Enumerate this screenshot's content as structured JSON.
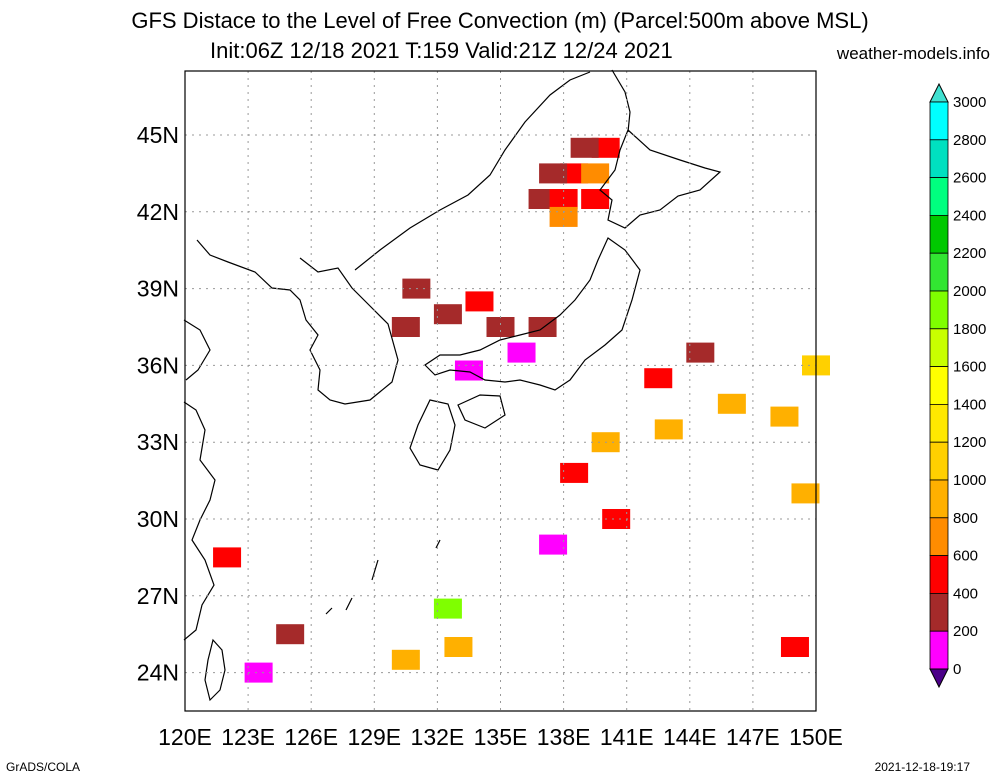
{
  "title_line1": "GFS Distace to the Level of Free Convection (m) (Parcel:500m above MSL)",
  "title_line2": "Init:06Z 12/18 2021 T:159 Valid:21Z 12/24 2021",
  "site": "weather-models.info",
  "credit": "GrADS/COLA",
  "timestamp": "2021-12-18-19:17",
  "map_extent": {
    "lon": [
      120,
      150
    ],
    "lat": [
      22.5,
      47.5
    ]
  },
  "lat_labels": [
    "24N",
    "27N",
    "30N",
    "33N",
    "36N",
    "39N",
    "42N",
    "45N"
  ],
  "lon_labels": [
    "120E",
    "123E",
    "126E",
    "129E",
    "132E",
    "135E",
    "138E",
    "141E",
    "144E",
    "147E",
    "150E"
  ],
  "colorbar": {
    "labels": [
      "0",
      "200",
      "400",
      "600",
      "800",
      "1000",
      "1200",
      "1400",
      "1600",
      "1800",
      "2000",
      "2200",
      "2400",
      "2600",
      "2800",
      "3000"
    ],
    "colors": [
      "#4b0088",
      "#ff00ff",
      "#a52a2a",
      "#ff0000",
      "#ff8c00",
      "#ffb000",
      "#ffd000",
      "#ffe800",
      "#ffff00",
      "#c8ff00",
      "#7fff00",
      "#32e632",
      "#00c800",
      "#00ff7f",
      "#00e0c0",
      "#00ffff",
      "#40e0d0"
    ]
  },
  "icons": {
    "borders": "coastline-lines"
  },
  "chart_data": {
    "type": "heatmap",
    "field": "LFC distance (m)",
    "units": "m",
    "cells": [
      {
        "lon": 138.5,
        "lat": 43.5,
        "v": 500
      },
      {
        "lon": 139.5,
        "lat": 43.5,
        "v": 700
      },
      {
        "lon": 137.5,
        "lat": 43.5,
        "v": 300
      },
      {
        "lon": 137.0,
        "lat": 42.5,
        "v": 200
      },
      {
        "lon": 138.0,
        "lat": 42.5,
        "v": 400
      },
      {
        "lon": 139.5,
        "lat": 42.5,
        "v": 500
      },
      {
        "lon": 138.0,
        "lat": 41.8,
        "v": 700
      },
      {
        "lon": 140.0,
        "lat": 44.5,
        "v": 500
      },
      {
        "lon": 139.0,
        "lat": 44.5,
        "v": 350
      },
      {
        "lon": 131.0,
        "lat": 39.0,
        "v": 350
      },
      {
        "lon": 132.5,
        "lat": 38.0,
        "v": 350
      },
      {
        "lon": 134.0,
        "lat": 38.5,
        "v": 500
      },
      {
        "lon": 135.0,
        "lat": 37.5,
        "v": 350
      },
      {
        "lon": 137.0,
        "lat": 37.5,
        "v": 350
      },
      {
        "lon": 136.0,
        "lat": 36.5,
        "v": 150
      },
      {
        "lon": 130.5,
        "lat": 37.5,
        "v": 200
      },
      {
        "lon": 133.5,
        "lat": 35.8,
        "v": 50
      },
      {
        "lon": 142.5,
        "lat": 35.5,
        "v": 500
      },
      {
        "lon": 144.5,
        "lat": 36.5,
        "v": 350
      },
      {
        "lon": 146.0,
        "lat": 34.5,
        "v": 800
      },
      {
        "lon": 143.0,
        "lat": 33.5,
        "v": 900
      },
      {
        "lon": 140.0,
        "lat": 33.0,
        "v": 900
      },
      {
        "lon": 148.5,
        "lat": 34.0,
        "v": 900
      },
      {
        "lon": 150.0,
        "lat": 36.0,
        "v": 1000
      },
      {
        "lon": 138.5,
        "lat": 31.8,
        "v": 500
      },
      {
        "lon": 137.5,
        "lat": 29.0,
        "v": 50
      },
      {
        "lon": 140.5,
        "lat": 30.0,
        "v": 450
      },
      {
        "lon": 132.5,
        "lat": 26.5,
        "v": 1900
      },
      {
        "lon": 133.0,
        "lat": 25.0,
        "v": 900
      },
      {
        "lon": 130.5,
        "lat": 24.5,
        "v": 900
      },
      {
        "lon": 123.5,
        "lat": 24.0,
        "v": 150
      },
      {
        "lon": 125.0,
        "lat": 25.5,
        "v": 250
      },
      {
        "lon": 122.0,
        "lat": 28.5,
        "v": 500
      },
      {
        "lon": 149.0,
        "lat": 25.0,
        "v": 500
      },
      {
        "lon": 149.5,
        "lat": 31.0,
        "v": 900
      }
    ]
  }
}
